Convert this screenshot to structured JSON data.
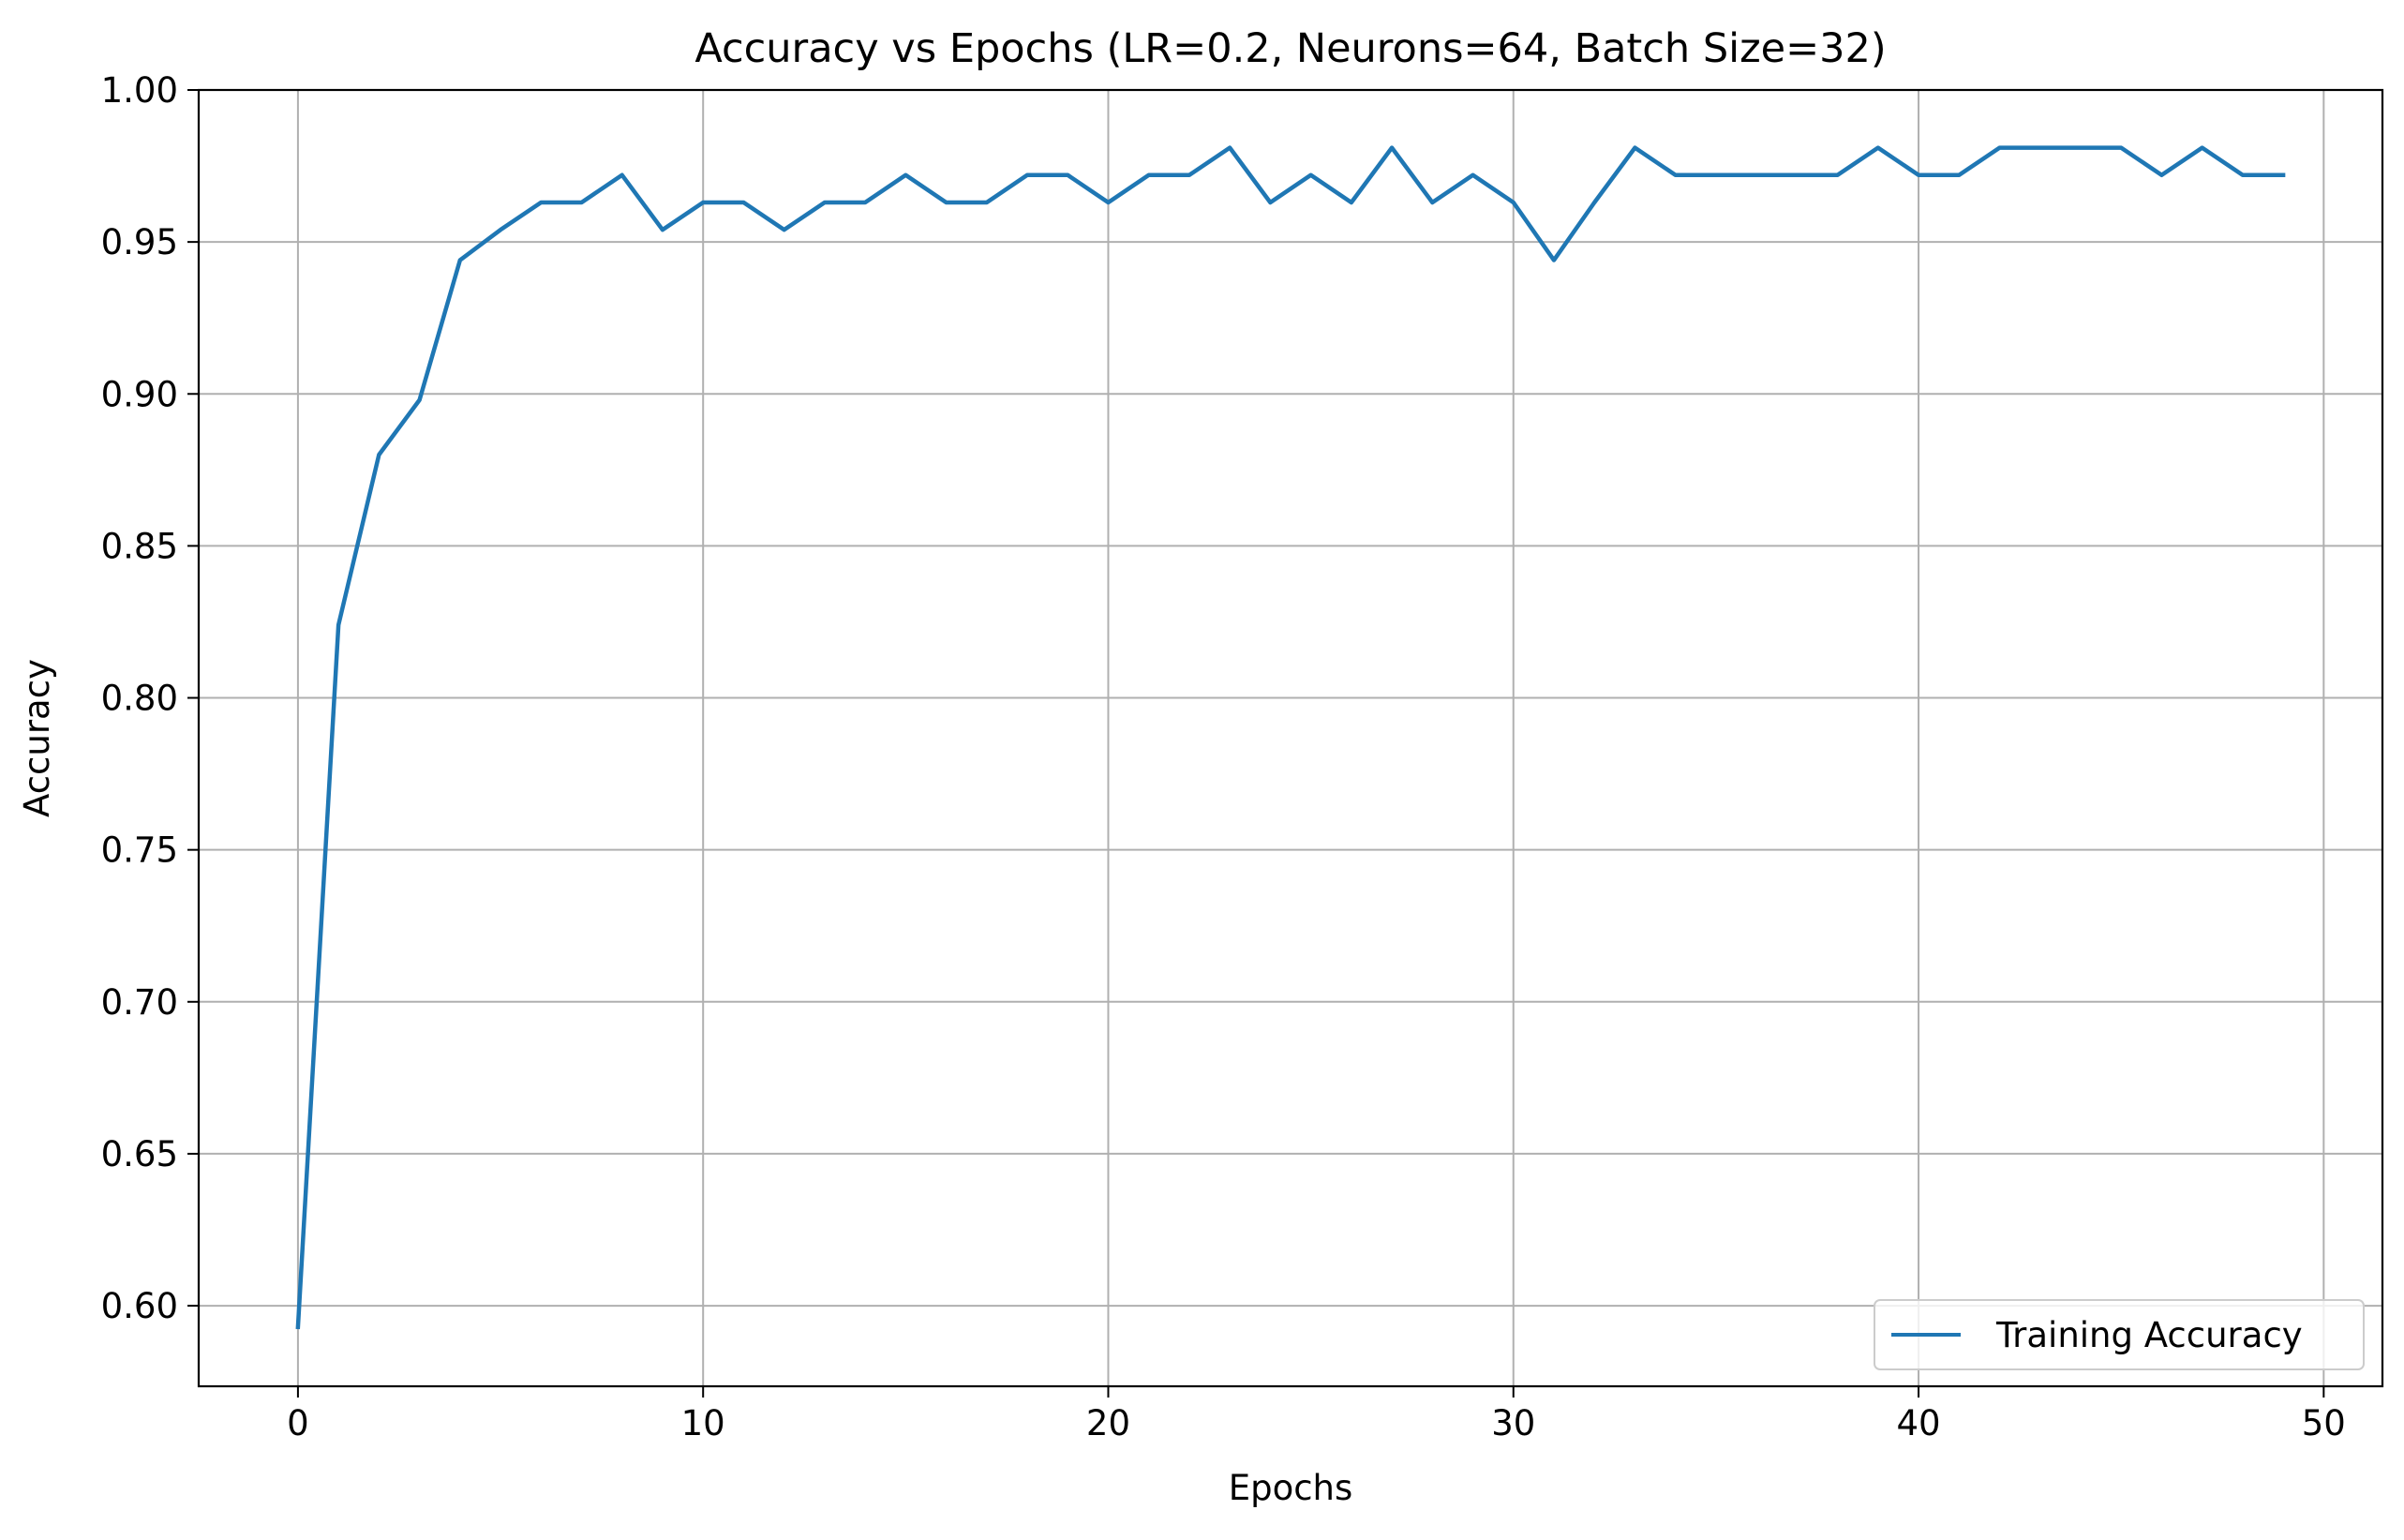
{
  "chart_data": {
    "type": "line",
    "title": "Accuracy vs Epochs (LR=0.2, Neurons=64, Batch Size=32)",
    "xlabel": "Epochs",
    "ylabel": "Accuracy",
    "xlim": [
      -2.45,
      51.45
    ],
    "ylim": [
      0.5735,
      1.0
    ],
    "xticks": [
      0,
      10,
      20,
      30,
      40,
      50
    ],
    "xtick_labels": [
      "0",
      "10",
      "20",
      "30",
      "40",
      "50"
    ],
    "yticks": [
      0.6,
      0.65,
      0.7,
      0.75,
      0.8,
      0.85,
      0.9,
      0.95,
      1.0
    ],
    "ytick_labels": [
      "0.60",
      "0.65",
      "0.70",
      "0.75",
      "0.80",
      "0.85",
      "0.90",
      "0.95",
      "1.00"
    ],
    "grid": true,
    "legend_position": "lower-right",
    "series": [
      {
        "name": "Training Accuracy",
        "color": "#1f77b4",
        "x": [
          0,
          1,
          2,
          3,
          4,
          5,
          6,
          7,
          8,
          9,
          10,
          11,
          12,
          13,
          14,
          15,
          16,
          17,
          18,
          19,
          20,
          21,
          22,
          23,
          24,
          25,
          26,
          27,
          28,
          29,
          30,
          31,
          32,
          33,
          34,
          35,
          36,
          37,
          38,
          39,
          40,
          41,
          42,
          43,
          44,
          45,
          46,
          47,
          48,
          49
        ],
        "values": [
          0.593,
          0.824,
          0.88,
          0.898,
          0.944,
          0.954,
          0.963,
          0.963,
          0.972,
          0.954,
          0.963,
          0.963,
          0.954,
          0.963,
          0.963,
          0.972,
          0.963,
          0.963,
          0.972,
          0.972,
          0.963,
          0.972,
          0.972,
          0.981,
          0.963,
          0.972,
          0.963,
          0.981,
          0.963,
          0.972,
          0.963,
          0.944,
          0.963,
          0.981,
          0.972,
          0.972,
          0.972,
          0.972,
          0.972,
          0.981,
          0.972,
          0.972,
          0.981,
          0.981,
          0.981,
          0.981,
          0.972,
          0.981,
          0.972,
          0.972
        ]
      }
    ]
  }
}
